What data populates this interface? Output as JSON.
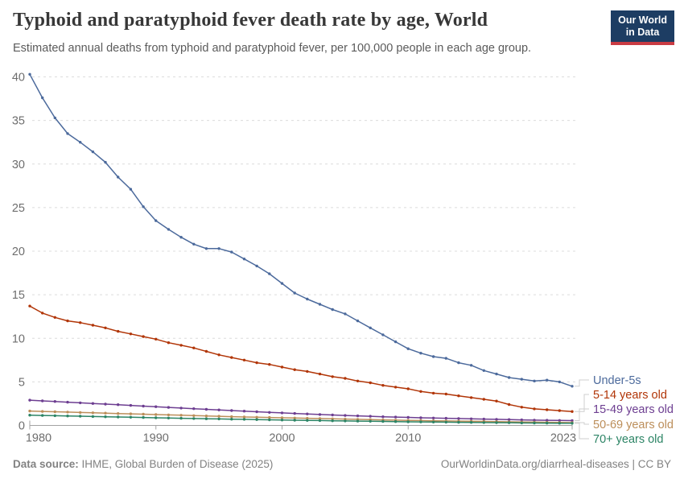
{
  "header": {
    "title": "Typhoid and paratyphoid fever death rate by age, World",
    "subtitle": "Estimated annual deaths from typhoid and paratyphoid fever, per 100,000 people in each age group.",
    "logo": {
      "line1": "Our World",
      "line2": "in Data"
    }
  },
  "footer": {
    "source_label": "Data source:",
    "source_text": " IHME, Global Burden of Disease (2025)",
    "link_text": "OurWorldinData.org/diarrheal-diseases | CC BY"
  },
  "chart_data": {
    "type": "line",
    "title": "Typhoid and paratyphoid fever death rate by age, World",
    "xlabel": "",
    "ylabel": "",
    "xlim": [
      1980,
      2023
    ],
    "ylim": [
      0,
      40
    ],
    "xticks": [
      1980,
      1990,
      2000,
      2010,
      2023
    ],
    "yticks": [
      0,
      5,
      10,
      15,
      20,
      25,
      30,
      35,
      40
    ],
    "grid": "horizontal-dashed",
    "legend_position": "right",
    "x": [
      1980,
      1981,
      1982,
      1983,
      1984,
      1985,
      1986,
      1987,
      1988,
      1989,
      1990,
      1991,
      1992,
      1993,
      1994,
      1995,
      1996,
      1997,
      1998,
      1999,
      2000,
      2001,
      2002,
      2003,
      2004,
      2005,
      2006,
      2007,
      2008,
      2009,
      2010,
      2011,
      2012,
      2013,
      2014,
      2015,
      2016,
      2017,
      2018,
      2019,
      2020,
      2021,
      2022,
      2023
    ],
    "series": [
      {
        "name": "Under-5s",
        "color": "#4C6A9C",
        "values": [
          40.3,
          37.6,
          35.3,
          33.5,
          32.5,
          31.4,
          30.2,
          28.5,
          27.1,
          25.1,
          23.5,
          22.5,
          21.6,
          20.8,
          20.3,
          20.3,
          19.9,
          19.1,
          18.3,
          17.4,
          16.3,
          15.2,
          14.5,
          13.9,
          13.3,
          12.8,
          12.0,
          11.2,
          10.4,
          9.6,
          8.8,
          8.3,
          7.9,
          7.7,
          7.2,
          6.9,
          6.3,
          5.9,
          5.5,
          5.3,
          5.1,
          5.2,
          5.0,
          4.5
        ]
      },
      {
        "name": "5-14 years old",
        "color": "#B13507",
        "values": [
          13.7,
          12.9,
          12.4,
          12.0,
          11.8,
          11.5,
          11.2,
          10.8,
          10.5,
          10.2,
          9.9,
          9.5,
          9.2,
          8.9,
          8.5,
          8.1,
          7.8,
          7.5,
          7.2,
          7.0,
          6.7,
          6.4,
          6.2,
          5.9,
          5.6,
          5.4,
          5.1,
          4.9,
          4.6,
          4.4,
          4.2,
          3.9,
          3.7,
          3.6,
          3.4,
          3.2,
          3.0,
          2.8,
          2.4,
          2.1,
          1.9,
          1.8,
          1.7,
          1.6
        ]
      },
      {
        "name": "15-49 years old",
        "color": "#6D3E91",
        "values": [
          2.9,
          2.82,
          2.75,
          2.67,
          2.6,
          2.52,
          2.45,
          2.38,
          2.3,
          2.22,
          2.15,
          2.07,
          2.0,
          1.92,
          1.85,
          1.78,
          1.71,
          1.64,
          1.57,
          1.5,
          1.44,
          1.38,
          1.32,
          1.26,
          1.2,
          1.15,
          1.1,
          1.05,
          1.0,
          0.96,
          0.92,
          0.88,
          0.85,
          0.82,
          0.79,
          0.76,
          0.73,
          0.7,
          0.67,
          0.64,
          0.61,
          0.59,
          0.57,
          0.55
        ]
      },
      {
        "name": "50-69 years old",
        "color": "#BC8E5A",
        "values": [
          1.65,
          1.61,
          1.57,
          1.53,
          1.49,
          1.45,
          1.41,
          1.37,
          1.33,
          1.29,
          1.25,
          1.21,
          1.17,
          1.13,
          1.09,
          1.05,
          1.01,
          0.97,
          0.94,
          0.91,
          0.88,
          0.85,
          0.82,
          0.79,
          0.76,
          0.73,
          0.7,
          0.67,
          0.64,
          0.61,
          0.58,
          0.56,
          0.54,
          0.52,
          0.5,
          0.48,
          0.46,
          0.44,
          0.42,
          0.4,
          0.38,
          0.36,
          0.34,
          0.32
        ]
      },
      {
        "name": "70+ years old",
        "color": "#2C8465",
        "values": [
          1.18,
          1.15,
          1.12,
          1.09,
          1.06,
          1.03,
          1.0,
          0.97,
          0.94,
          0.91,
          0.88,
          0.85,
          0.82,
          0.79,
          0.77,
          0.75,
          0.72,
          0.7,
          0.67,
          0.65,
          0.62,
          0.6,
          0.58,
          0.56,
          0.54,
          0.52,
          0.5,
          0.48,
          0.46,
          0.44,
          0.42,
          0.41,
          0.39,
          0.38,
          0.36,
          0.35,
          0.33,
          0.32,
          0.31,
          0.29,
          0.28,
          0.27,
          0.26,
          0.25
        ]
      }
    ]
  },
  "colors": {
    "grid": "#dcdcdc",
    "axis": "#a3a3a3",
    "tick_label": "#6e6e6e",
    "connector": "#cfcfcf",
    "logo_bg": "#1d3d63",
    "logo_red": "#c93b43"
  }
}
